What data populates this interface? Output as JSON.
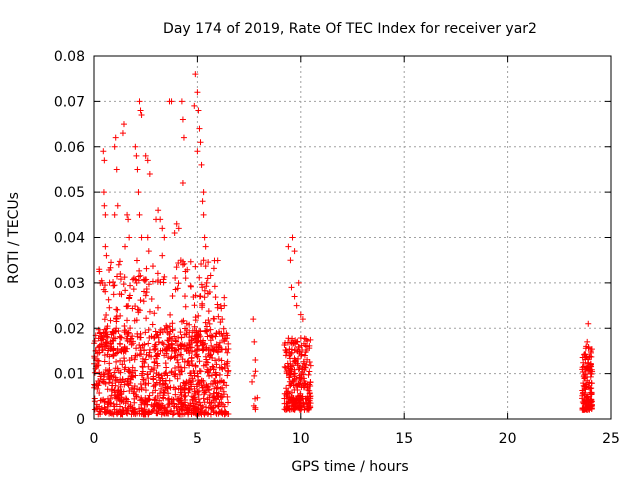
{
  "chart_data": {
    "type": "scatter",
    "title": "Day 174 of 2019, Rate Of TEC Index for receiver yar2",
    "xlabel": "GPS time / hours",
    "ylabel": "ROTI / TECUs",
    "xlim": [
      0,
      25
    ],
    "ylim": [
      0,
      0.08
    ],
    "xticks": [
      "0",
      "5",
      "10",
      "15",
      "20",
      "25"
    ],
    "yticks": [
      "0",
      "0.01",
      "0.02",
      "0.03",
      "0.04",
      "0.05",
      "0.06",
      "0.07",
      "0.08"
    ],
    "grid": true,
    "marker": "plus",
    "color": "#ff0000",
    "series": [
      {
        "clusters": [
          {
            "x_range": [
              0.0,
              6.5
            ],
            "y_band": [
              0.001,
              0.02
            ],
            "count": 900
          },
          {
            "x_range": [
              0.0,
              6.3
            ],
            "y_band": [
              0.015,
              0.035
            ],
            "count": 300
          },
          {
            "x_range": [
              7.6,
              7.9
            ],
            "y_band": [
              0.002,
              0.012
            ],
            "count": 8
          },
          {
            "x_range": [
              9.2,
              10.5
            ],
            "y_band": [
              0.002,
              0.018
            ],
            "count": 260
          },
          {
            "x_range": [
              23.6,
              24.1
            ],
            "y_band": [
              0.002,
              0.016
            ],
            "count": 140
          }
        ],
        "points": [
          [
            0.25,
            0.033
          ],
          [
            0.4,
            0.03
          ],
          [
            0.45,
            0.059
          ],
          [
            0.5,
            0.057
          ],
          [
            0.48,
            0.05
          ],
          [
            0.5,
            0.047
          ],
          [
            0.55,
            0.045
          ],
          [
            0.6,
            0.036
          ],
          [
            0.55,
            0.038
          ],
          [
            1.0,
            0.06
          ],
          [
            1.05,
            0.062
          ],
          [
            1.1,
            0.055
          ],
          [
            1.15,
            0.047
          ],
          [
            1.0,
            0.045
          ],
          [
            1.2,
            0.034
          ],
          [
            1.4,
            0.063
          ],
          [
            1.45,
            0.065
          ],
          [
            1.6,
            0.045
          ],
          [
            1.65,
            0.044
          ],
          [
            1.7,
            0.04
          ],
          [
            1.5,
            0.038
          ],
          [
            2.0,
            0.06
          ],
          [
            2.05,
            0.058
          ],
          [
            2.1,
            0.055
          ],
          [
            2.2,
            0.07
          ],
          [
            2.25,
            0.068
          ],
          [
            2.3,
            0.067
          ],
          [
            2.15,
            0.05
          ],
          [
            2.2,
            0.045
          ],
          [
            2.3,
            0.04
          ],
          [
            2.5,
            0.058
          ],
          [
            2.6,
            0.057
          ],
          [
            2.7,
            0.054
          ],
          [
            2.6,
            0.04
          ],
          [
            2.65,
            0.037
          ],
          [
            3.0,
            0.044
          ],
          [
            3.1,
            0.046
          ],
          [
            3.2,
            0.044
          ],
          [
            3.3,
            0.042
          ],
          [
            3.4,
            0.04
          ],
          [
            3.3,
            0.036
          ],
          [
            3.65,
            0.07
          ],
          [
            3.75,
            0.07
          ],
          [
            3.9,
            0.041
          ],
          [
            4.0,
            0.043
          ],
          [
            4.1,
            0.042
          ],
          [
            4.2,
            0.035
          ],
          [
            4.3,
            0.034
          ],
          [
            4.25,
            0.07
          ],
          [
            4.3,
            0.066
          ],
          [
            4.35,
            0.062
          ],
          [
            4.3,
            0.052
          ],
          [
            4.85,
            0.069
          ],
          [
            4.9,
            0.076
          ],
          [
            5.0,
            0.072
          ],
          [
            5.05,
            0.068
          ],
          [
            5.1,
            0.064
          ],
          [
            5.15,
            0.061
          ],
          [
            5.2,
            0.056
          ],
          [
            5.0,
            0.059
          ],
          [
            5.3,
            0.05
          ],
          [
            5.25,
            0.048
          ],
          [
            5.3,
            0.045
          ],
          [
            5.35,
            0.04
          ],
          [
            5.4,
            0.038
          ],
          [
            5.3,
            0.035
          ],
          [
            5.45,
            0.03
          ],
          [
            5.5,
            0.031
          ],
          [
            5.6,
            0.028
          ],
          [
            6.3,
            0.025
          ],
          [
            6.2,
            0.022
          ],
          [
            7.7,
            0.022
          ],
          [
            7.75,
            0.017
          ],
          [
            7.8,
            0.013
          ],
          [
            9.4,
            0.038
          ],
          [
            9.5,
            0.035
          ],
          [
            9.6,
            0.04
          ],
          [
            9.7,
            0.037
          ],
          [
            9.9,
            0.03
          ],
          [
            9.55,
            0.029
          ],
          [
            9.7,
            0.027
          ],
          [
            9.8,
            0.025
          ],
          [
            10.0,
            0.023
          ],
          [
            10.1,
            0.022
          ],
          [
            23.9,
            0.021
          ],
          [
            23.85,
            0.017
          ],
          [
            23.8,
            0.016
          ]
        ]
      }
    ]
  }
}
